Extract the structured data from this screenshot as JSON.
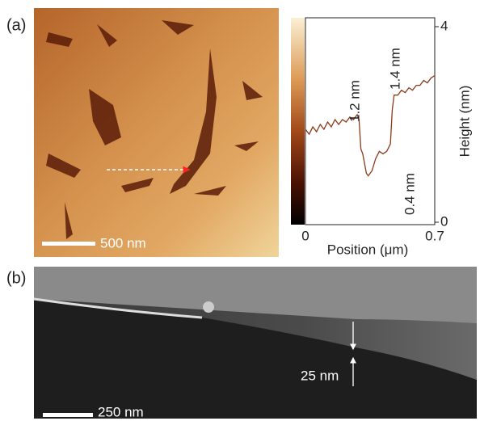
{
  "figure": {
    "panel_a_label": "(a)",
    "panel_b_label": "(b)",
    "scale_bar_a": "500 nm",
    "scale_bar_b": "250 nm",
    "thickness_label": "25 nm"
  },
  "chart_data": {
    "type": "line",
    "xlabel": "Position (μm)",
    "ylabel": "Height (nm)",
    "color": "#8b3a1a",
    "x": [
      0,
      0.02,
      0.04,
      0.06,
      0.08,
      0.1,
      0.12,
      0.14,
      0.16,
      0.18,
      0.2,
      0.22,
      0.24,
      0.26,
      0.28,
      0.29,
      0.3,
      0.31,
      0.32,
      0.33,
      0.34,
      0.36,
      0.38,
      0.4,
      0.42,
      0.44,
      0.46,
      0.47,
      0.48,
      0.5,
      0.52,
      0.54,
      0.56,
      0.58,
      0.6,
      0.62,
      0.64,
      0.66,
      0.68,
      0.7
    ],
    "values": [
      1.9,
      1.8,
      1.95,
      1.85,
      2.0,
      1.9,
      2.05,
      1.95,
      2.1,
      2.0,
      2.1,
      2.05,
      2.15,
      2.1,
      2.2,
      2.1,
      1.5,
      1.4,
      1.2,
      1.0,
      0.95,
      1.05,
      1.3,
      1.45,
      1.4,
      1.45,
      1.6,
      2.3,
      2.6,
      2.6,
      2.7,
      2.65,
      2.75,
      2.7,
      2.8,
      2.8,
      2.9,
      2.85,
      2.95,
      3.0
    ],
    "xlim": [
      0,
      0.7
    ],
    "ylim": [
      0,
      4
    ],
    "xticks": [
      0,
      0.7
    ],
    "yticks": [
      0,
      4
    ],
    "annotations": [
      "1.2 nm",
      "1.4 nm",
      "0.4 nm"
    ]
  }
}
